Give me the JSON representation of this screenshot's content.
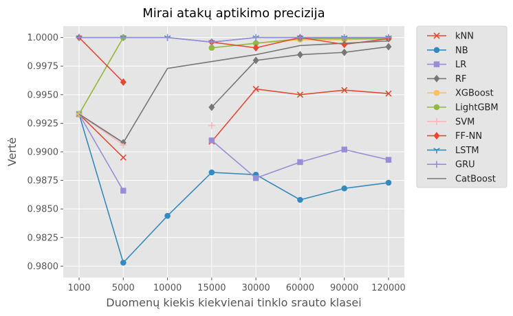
{
  "chart_data": {
    "type": "line",
    "title": "Mirai atakų aptikimo precizija",
    "xlabel": "Duomenų kiekis kiekvienai tinklo srauto klasei",
    "ylabel": "Vertė",
    "categories": [
      "1000",
      "5000",
      "10000",
      "15000",
      "30000",
      "60000",
      "90000",
      "120000"
    ],
    "ylim": [
      0.979,
      1.001
    ],
    "yticks": [
      "0.9800",
      "0.9825",
      "0.9850",
      "0.9875",
      "0.9900",
      "0.9925",
      "0.9950",
      "0.9975",
      "1.0000"
    ],
    "grid": true,
    "legend_position": "outside-right",
    "series": [
      {
        "name": "kNN",
        "color": "#E24A33",
        "marker": "x",
        "values": [
          0.9933,
          0.9895,
          null,
          0.9909,
          0.9955,
          0.995,
          0.9954,
          0.9951
        ]
      },
      {
        "name": "NB",
        "color": "#348ABD",
        "marker": "circle",
        "values": [
          0.9933,
          0.9803,
          0.9844,
          0.9882,
          0.988,
          0.9858,
          0.9868,
          0.9873
        ]
      },
      {
        "name": "LR",
        "color": "#988ED5",
        "marker": "square",
        "values": [
          0.9933,
          0.9866,
          null,
          0.991,
          0.9877,
          0.9891,
          0.9902,
          0.9893
        ]
      },
      {
        "name": "RF",
        "color": "#777777",
        "marker": "diamond",
        "values": [
          0.9933,
          0.9908,
          null,
          0.9939,
          0.998,
          0.9985,
          0.9987,
          0.9992
        ]
      },
      {
        "name": "XGBoost",
        "color": "#FBC15E",
        "marker": "circle",
        "values": [
          0.9933,
          1.0,
          null,
          0.9991,
          0.9995,
          0.9998,
          0.9998,
          0.9999
        ]
      },
      {
        "name": "LightGBM",
        "color": "#8EBA42",
        "marker": "circle",
        "values": [
          0.9933,
          1.0,
          null,
          0.9991,
          0.9995,
          0.9999,
          0.9999,
          0.9999
        ]
      },
      {
        "name": "SVM",
        "color": "#FFB5B8",
        "marker": "plus",
        "values": [
          0.9933,
          0.9906,
          null,
          0.9923,
          null,
          null,
          null,
          null
        ]
      },
      {
        "name": "FF-NN",
        "color": "#E24A33",
        "marker": "diamond",
        "values": [
          1.0,
          0.9961,
          null,
          0.9996,
          0.9991,
          1.0,
          0.9994,
          0.9999
        ]
      },
      {
        "name": "LSTM",
        "color": "#348ABD",
        "marker": "tri",
        "values": [
          1.0,
          1.0,
          1.0,
          0.9996,
          1.0,
          1.0,
          1.0,
          1.0
        ]
      },
      {
        "name": "GRU",
        "color": "#988ED5",
        "marker": "plus",
        "values": [
          1.0,
          1.0,
          1.0,
          0.9996,
          1.0,
          1.0,
          1.0,
          1.0
        ]
      },
      {
        "name": "CatBoost",
        "color": "#777777",
        "marker": "none",
        "values": [
          0.9933,
          0.9908,
          0.9973,
          0.9979,
          0.9985,
          0.9993,
          0.9995,
          0.9997
        ]
      }
    ]
  }
}
